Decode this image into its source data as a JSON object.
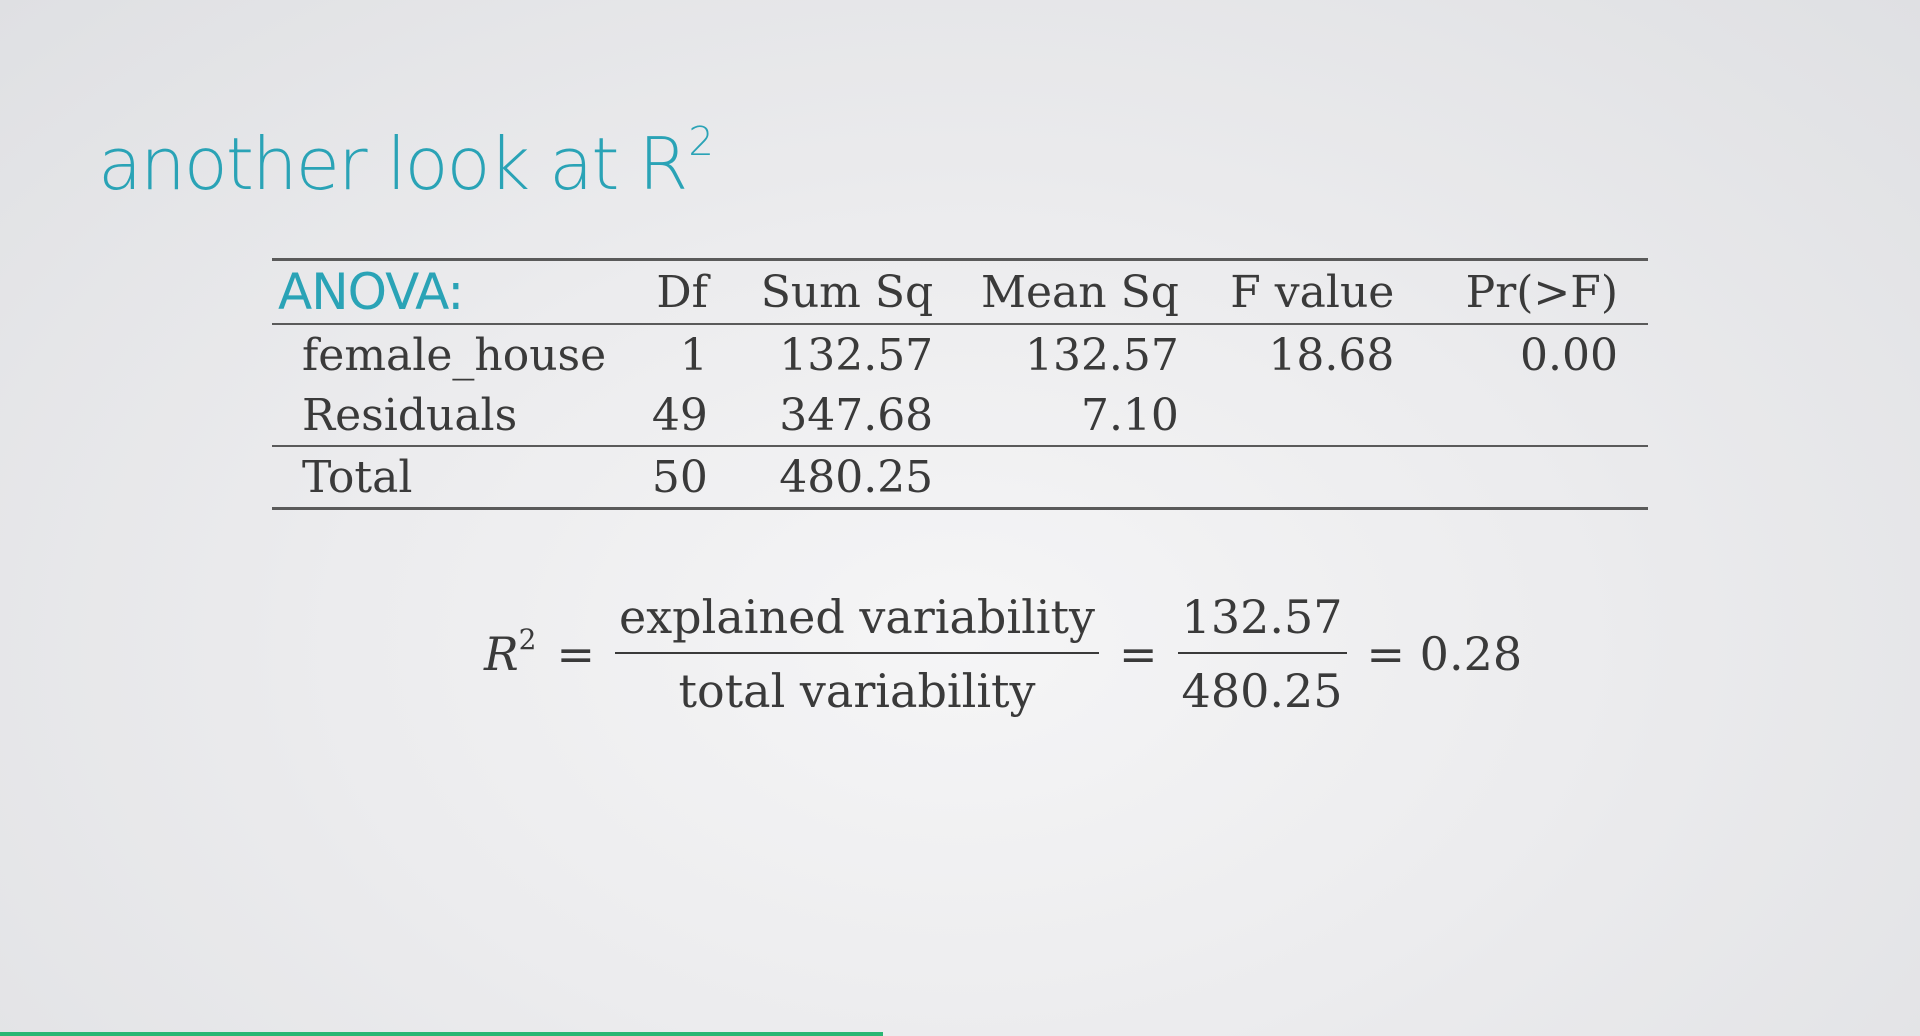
{
  "slide": {
    "title": "another look at R",
    "title_superscript": "2"
  },
  "anova": {
    "label": "ANOVA:",
    "headers": [
      "Df",
      "Sum Sq",
      "Mean Sq",
      "F value",
      "Pr(>F)"
    ],
    "rows": [
      {
        "name": "female_house",
        "df": "1",
        "sum_sq": "132.57",
        "mean_sq": "132.57",
        "f_value": "18.68",
        "pr": "0.00"
      },
      {
        "name": "Residuals",
        "df": "49",
        "sum_sq": "347.68",
        "mean_sq": "7.10",
        "f_value": "",
        "pr": ""
      }
    ],
    "total": {
      "name": "Total",
      "df": "50",
      "sum_sq": "480.25"
    }
  },
  "formula": {
    "lhs": "R",
    "lhs_superscript": "2",
    "eq1": "=",
    "frac1_num": "explained variability",
    "frac1_den": "total variability",
    "eq2": "=",
    "frac2_num": "132.57",
    "frac2_den": "480.25",
    "eq3": "= 0.28"
  },
  "colors": {
    "accent": "#2aa3b6",
    "text": "#3a3a3a",
    "progress": "#2ab673"
  },
  "playback": {
    "progress_fraction": 0.46
  }
}
